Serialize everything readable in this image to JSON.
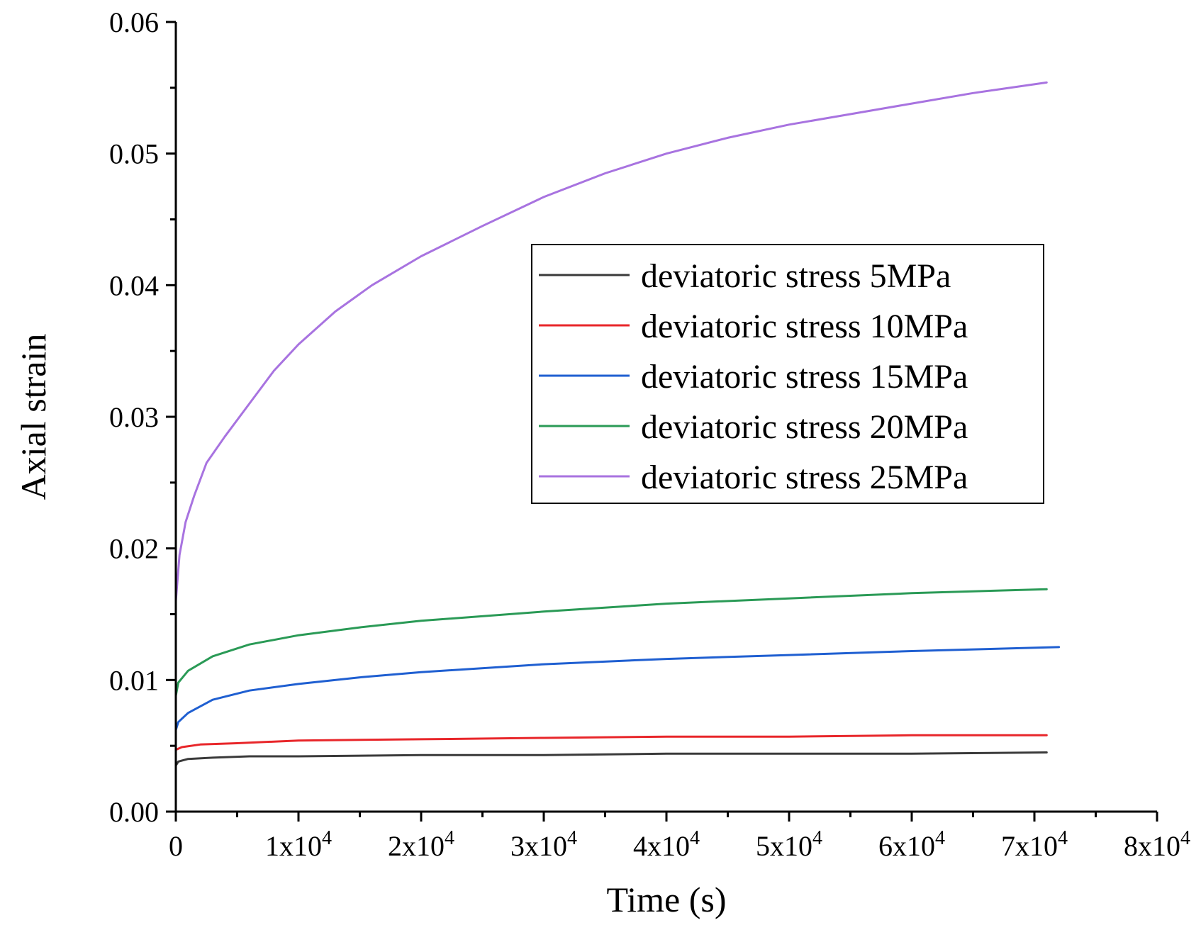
{
  "chart_data": {
    "type": "line",
    "title": "",
    "xlabel": "Time (s)",
    "ylabel": "Axial strain",
    "xlim": [
      0,
      80000
    ],
    "ylim": [
      0,
      0.06
    ],
    "grid": false,
    "legend_position": "top-right",
    "x_ticks": [
      {
        "value": 0,
        "base": "0",
        "exp": ""
      },
      {
        "value": 10000,
        "base": "1x10",
        "exp": "4"
      },
      {
        "value": 20000,
        "base": "2x10",
        "exp": "4"
      },
      {
        "value": 30000,
        "base": "3x10",
        "exp": "4"
      },
      {
        "value": 40000,
        "base": "4x10",
        "exp": "4"
      },
      {
        "value": 50000,
        "base": "5x10",
        "exp": "4"
      },
      {
        "value": 60000,
        "base": "6x10",
        "exp": "4"
      },
      {
        "value": 70000,
        "base": "7x10",
        "exp": "4"
      },
      {
        "value": 80000,
        "base": "8x10",
        "exp": "4"
      }
    ],
    "y_ticks": [
      {
        "value": 0,
        "label": "0.00"
      },
      {
        "value": 0.01,
        "label": "0.01"
      },
      {
        "value": 0.02,
        "label": "0.02"
      },
      {
        "value": 0.03,
        "label": "0.03"
      },
      {
        "value": 0.04,
        "label": "0.04"
      },
      {
        "value": 0.05,
        "label": "0.05"
      },
      {
        "value": 0.06,
        "label": "0.06"
      }
    ],
    "series": [
      {
        "name": "deviatoric stress 5MPa",
        "color": "#3a3a3a",
        "x": [
          0,
          200,
          1000,
          3000,
          6000,
          10000,
          20000,
          30000,
          40000,
          50000,
          60000,
          71000
        ],
        "y": [
          0.0035,
          0.0038,
          0.004,
          0.0041,
          0.0042,
          0.0042,
          0.0043,
          0.0043,
          0.0044,
          0.0044,
          0.0044,
          0.0045
        ]
      },
      {
        "name": "deviatoric stress 10MPa",
        "color": "#e8262a",
        "x": [
          0,
          500,
          2000,
          5000,
          10000,
          20000,
          30000,
          40000,
          50000,
          60000,
          71000
        ],
        "y": [
          0.0047,
          0.0049,
          0.0051,
          0.0052,
          0.0054,
          0.0055,
          0.0056,
          0.0057,
          0.0057,
          0.0058,
          0.0058
        ]
      },
      {
        "name": "deviatoric stress 15MPa",
        "color": "#1f5fd1",
        "x": [
          0,
          200,
          1000,
          3000,
          6000,
          10000,
          15000,
          20000,
          30000,
          40000,
          50000,
          60000,
          72000
        ],
        "y": [
          0.0062,
          0.0068,
          0.0075,
          0.0085,
          0.0092,
          0.0097,
          0.0102,
          0.0106,
          0.0112,
          0.0116,
          0.0119,
          0.0122,
          0.0125
        ]
      },
      {
        "name": "deviatoric stress 20MPa",
        "color": "#2a9a56",
        "x": [
          0,
          200,
          1000,
          3000,
          6000,
          10000,
          15000,
          20000,
          30000,
          40000,
          50000,
          60000,
          71000
        ],
        "y": [
          0.0088,
          0.0098,
          0.0107,
          0.0118,
          0.0127,
          0.0134,
          0.014,
          0.0145,
          0.0152,
          0.0158,
          0.0162,
          0.0166,
          0.0169
        ]
      },
      {
        "name": "deviatoric stress 25MPa",
        "color": "#a873e0",
        "x": [
          0,
          300,
          800,
          1500,
          2500,
          4000,
          6000,
          8000,
          10000,
          13000,
          16000,
          20000,
          25000,
          30000,
          35000,
          40000,
          45000,
          50000,
          55000,
          60000,
          65000,
          71000
        ],
        "y": [
          0.016,
          0.0195,
          0.022,
          0.024,
          0.0265,
          0.0285,
          0.031,
          0.0335,
          0.0355,
          0.038,
          0.04,
          0.0422,
          0.0445,
          0.0467,
          0.0485,
          0.05,
          0.0512,
          0.0522,
          0.053,
          0.0538,
          0.0546,
          0.0554
        ]
      }
    ]
  }
}
